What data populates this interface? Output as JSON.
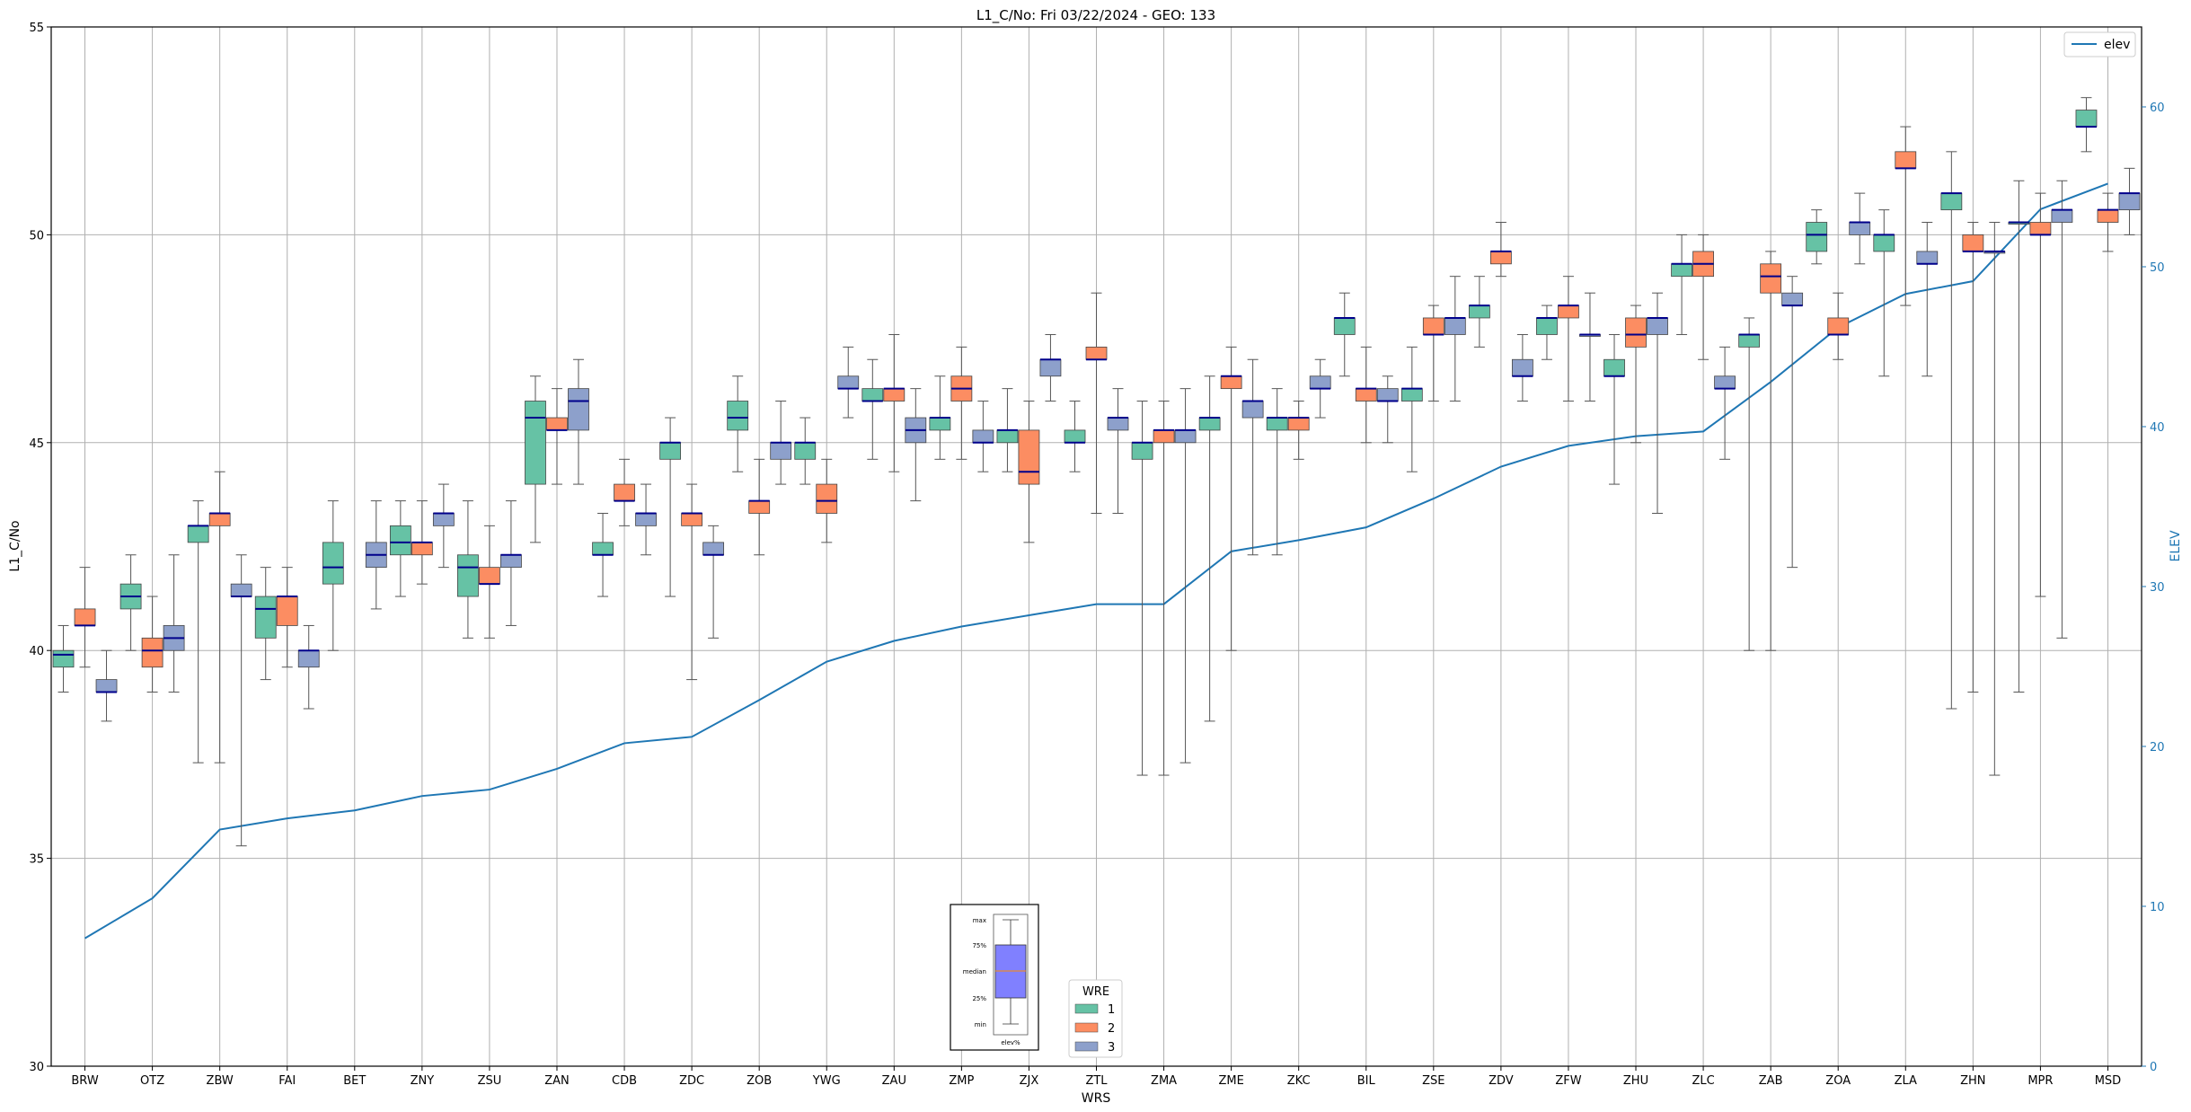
{
  "chart_data": {
    "type": "boxplot",
    "title": "L1_C/No: Fri 03/22/2024 - GEO: 133",
    "xlabel": "WRS",
    "ylabel": "L1_C/No",
    "y2label": "ELEV",
    "ylim": [
      30,
      55
    ],
    "y2lim": [
      0,
      65
    ],
    "yticks": [
      30,
      35,
      40,
      45,
      50,
      55
    ],
    "y2ticks": [
      0,
      10,
      20,
      30,
      40,
      50,
      60
    ],
    "grid": true,
    "categories": [
      "BRW",
      "OTZ",
      "ZBW",
      "FAI",
      "BET",
      "ZNY",
      "ZSU",
      "ZAN",
      "CDB",
      "ZDC",
      "ZOB",
      "YWG",
      "ZAU",
      "ZMP",
      "ZJX",
      "ZTL",
      "ZMA",
      "ZME",
      "ZKC",
      "BIL",
      "ZSE",
      "ZDV",
      "ZFW",
      "ZHU",
      "ZLC",
      "ZAB",
      "ZOA",
      "ZLA",
      "ZHN",
      "MPR",
      "MSD"
    ],
    "legend_wre": {
      "title": "WRE",
      "placement": "bottom-center",
      "entries": [
        "1",
        "2",
        "3"
      ]
    },
    "legend_line": {
      "placement": "top-right",
      "entries": [
        "elev"
      ]
    },
    "key_box": {
      "labels": [
        "max",
        "75%",
        "median",
        "25%",
        "min"
      ],
      "caption": "elev%"
    },
    "colors": {
      "wre1": "#66c2a5",
      "wre2": "#fc8d62",
      "wre3": "#8da0cb",
      "median": "#00008b",
      "elev": "#1f77b4",
      "key_fill": "#8080ff",
      "key_median": "#ff8c00"
    },
    "series": [
      {
        "name": "1",
        "boxes": [
          [
            39,
            39.6,
            39.9,
            40,
            40.6
          ],
          [
            40,
            41,
            41.3,
            41.6,
            42.3
          ],
          [
            37.3,
            42.6,
            43,
            43,
            43.6
          ],
          [
            39.3,
            40.3,
            41,
            41.3,
            42
          ],
          [
            40,
            41.6,
            42,
            42.6,
            43.6
          ],
          [
            41.3,
            42.3,
            42.6,
            43,
            43.6
          ],
          [
            40.3,
            41.3,
            42,
            42.3,
            43.6
          ],
          [
            42.6,
            44,
            45.6,
            46,
            46.6
          ],
          [
            41.3,
            42.3,
            42.3,
            42.6,
            43.3
          ],
          [
            41.3,
            44.6,
            45,
            45,
            45.6
          ],
          [
            44.3,
            45.3,
            45.6,
            46,
            46.6
          ],
          [
            44,
            44.6,
            45,
            45,
            45.6
          ],
          [
            44.6,
            46,
            46,
            46.3,
            47
          ],
          [
            44.6,
            45.3,
            45.6,
            45.6,
            46.6
          ],
          [
            44.3,
            45,
            45.3,
            45.3,
            46.3
          ],
          [
            44.3,
            45,
            45,
            45.3,
            46
          ],
          [
            37,
            44.6,
            45,
            45,
            46
          ],
          [
            38.3,
            45.3,
            45.6,
            45.6,
            46.6
          ],
          [
            42.3,
            45.3,
            45.6,
            45.6,
            46.3
          ],
          [
            46.6,
            47.6,
            48,
            48,
            48.6
          ],
          [
            44.3,
            46,
            46.3,
            46.3,
            47.3
          ],
          [
            47.3,
            48,
            48.3,
            48.3,
            49
          ],
          [
            47,
            47.6,
            48,
            48,
            48.3
          ],
          [
            44,
            46.6,
            46.6,
            47,
            47.6
          ],
          [
            47.6,
            49,
            49.3,
            49.3,
            50
          ],
          [
            40,
            47.3,
            47.6,
            47.6,
            48
          ],
          [
            49.3,
            49.6,
            50,
            50.3,
            50.6
          ],
          [
            46.6,
            49.6,
            50,
            50,
            50.6
          ],
          [
            38.6,
            50.6,
            51,
            51,
            52
          ],
          [
            39,
            50.3,
            50.3,
            50.3,
            51.3
          ],
          [
            52,
            52.6,
            52.6,
            53,
            53.3
          ]
        ]
      },
      {
        "name": "2",
        "boxes": [
          [
            39.6,
            40.6,
            40.6,
            41,
            42
          ],
          [
            39,
            39.6,
            40,
            40.3,
            41.3
          ],
          [
            37.3,
            43,
            43.3,
            43.3,
            44.3
          ],
          [
            39.6,
            40.6,
            41.3,
            41.3,
            42
          ],
          null,
          [
            41.6,
            42.3,
            42.6,
            42.6,
            43.6
          ],
          [
            40.3,
            41.6,
            41.6,
            42,
            43
          ],
          [
            44,
            45.3,
            45.3,
            45.6,
            46.3
          ],
          [
            43,
            43.6,
            43.6,
            44,
            44.6
          ],
          [
            39.3,
            43,
            43.3,
            43.3,
            44
          ],
          [
            42.3,
            43.3,
            43.6,
            43.6,
            44.6
          ],
          [
            42.6,
            43.3,
            43.6,
            44,
            44.6
          ],
          [
            44.3,
            46,
            46.3,
            46.3,
            47.6
          ],
          [
            44.6,
            46,
            46.3,
            46.6,
            47.3
          ],
          [
            42.6,
            44,
            44.3,
            45.3,
            46
          ],
          [
            43.3,
            47,
            47,
            47.3,
            48.6
          ],
          [
            37,
            45,
            45.3,
            45.3,
            46
          ],
          [
            40,
            46.3,
            46.6,
            46.6,
            47.3
          ],
          [
            44.6,
            45.3,
            45.6,
            45.6,
            46
          ],
          [
            45,
            46,
            46.3,
            46.3,
            47.3
          ],
          [
            46,
            47.6,
            47.6,
            48,
            48.3
          ],
          [
            49,
            49.3,
            49.6,
            49.6,
            50.3
          ],
          [
            46,
            48,
            48.3,
            48.3,
            49
          ],
          [
            45,
            47.3,
            47.6,
            48,
            48.3
          ],
          [
            47,
            49,
            49.3,
            49.6,
            50
          ],
          [
            40,
            48.6,
            49,
            49.3,
            49.6
          ],
          [
            47,
            47.6,
            47.6,
            48,
            48.6
          ],
          [
            48.3,
            51.6,
            51.6,
            52,
            52.6
          ],
          [
            39,
            49.6,
            49.6,
            50,
            50.3
          ],
          [
            41.3,
            50,
            50,
            50.3,
            51
          ],
          [
            49.6,
            50.3,
            50.6,
            50.6,
            51
          ]
        ]
      },
      {
        "name": "3",
        "boxes": [
          [
            38.3,
            39,
            39,
            39.3,
            40
          ],
          [
            39,
            40,
            40.3,
            40.6,
            42.3
          ],
          [
            35.3,
            41.3,
            41.3,
            41.6,
            42.3
          ],
          [
            38.6,
            39.6,
            40,
            40,
            40.6
          ],
          [
            41,
            42,
            42.3,
            42.6,
            43.6
          ],
          [
            42,
            43,
            43.3,
            43.3,
            44
          ],
          [
            40.6,
            42,
            42.3,
            42.3,
            43.6
          ],
          [
            44,
            45.3,
            46,
            46.3,
            47
          ],
          [
            42.3,
            43,
            43.3,
            43.3,
            44
          ],
          [
            40.3,
            42.3,
            42.3,
            42.6,
            43
          ],
          [
            44,
            44.6,
            45,
            45,
            46
          ],
          [
            45.6,
            46.3,
            46.3,
            46.6,
            47.3
          ],
          [
            43.6,
            45,
            45.3,
            45.6,
            46.3
          ],
          [
            44.3,
            45,
            45,
            45.3,
            46
          ],
          [
            46,
            46.6,
            47,
            47,
            47.6
          ],
          [
            43.3,
            45.3,
            45.6,
            45.6,
            46.3
          ],
          [
            37.3,
            45,
            45.3,
            45.3,
            46.3
          ],
          [
            42.3,
            45.6,
            46,
            46,
            47
          ],
          [
            45.6,
            46.3,
            46.3,
            46.6,
            47
          ],
          [
            45,
            46,
            46,
            46.3,
            46.6
          ],
          [
            46,
            47.6,
            48,
            48,
            49
          ],
          [
            46,
            46.6,
            46.6,
            47,
            47.6
          ],
          [
            46,
            47.6,
            47.6,
            47.6,
            48.6
          ],
          [
            43.3,
            47.6,
            48,
            48,
            48.6
          ],
          [
            44.6,
            46.3,
            46.3,
            46.6,
            47.3
          ],
          [
            42,
            48.3,
            48.3,
            48.6,
            49
          ],
          [
            49.3,
            50,
            50.3,
            50.3,
            51
          ],
          [
            46.6,
            49.3,
            49.3,
            49.6,
            50.3
          ],
          [
            37,
            49.6,
            49.6,
            49.6,
            50.3
          ],
          [
            40.3,
            50.3,
            50.6,
            50.6,
            51.3
          ],
          [
            50,
            50.6,
            51,
            51,
            51.6
          ]
        ]
      }
    ],
    "line_series": {
      "name": "elev",
      "axis": "right",
      "values": [
        8,
        10.5,
        14.8,
        15.5,
        16,
        16.9,
        17.3,
        18.6,
        20.2,
        20.6,
        22.9,
        25.3,
        26.6,
        27.5,
        28.2,
        28.9,
        28.9,
        32.2,
        32.9,
        33.7,
        35.5,
        37.5,
        38.8,
        39.4,
        39.7,
        42.8,
        46.2,
        48.3,
        49.1,
        53.6,
        55.2
      ]
    }
  }
}
